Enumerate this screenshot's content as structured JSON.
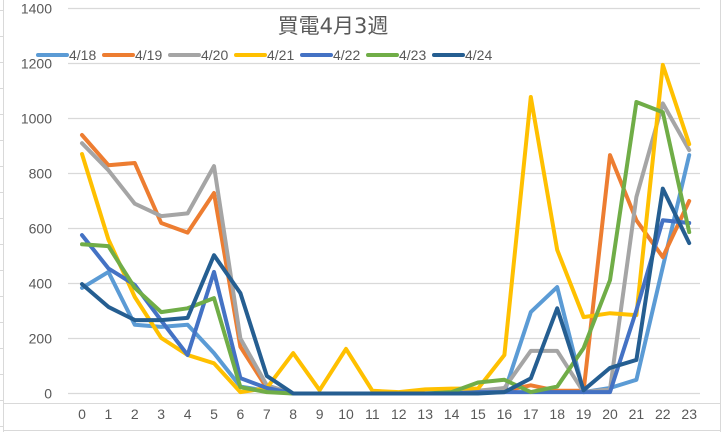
{
  "chart_data": {
    "type": "line",
    "title": "買電4月3週",
    "xlabel": "",
    "ylabel": "",
    "ylim": [
      0,
      1400
    ],
    "yticks": [
      0,
      200,
      400,
      600,
      800,
      1000,
      1200,
      1400
    ],
    "grid": true,
    "legend_position": "top",
    "categories": [
      "0",
      "1",
      "2",
      "3",
      "4",
      "5",
      "6",
      "7",
      "8",
      "9",
      "10",
      "11",
      "12",
      "13",
      "14",
      "15",
      "16",
      "17",
      "18",
      "19",
      "20",
      "21",
      "22",
      "23"
    ],
    "series": [
      {
        "name": "4/18",
        "color": "#5B9BD5",
        "values": [
          384,
          442,
          250,
          242,
          250,
          147,
          25,
          10,
          0,
          0,
          0,
          0,
          0,
          0,
          0,
          5,
          5,
          296,
          387,
          5,
          20,
          50,
          460,
          867
        ]
      },
      {
        "name": "4/19",
        "color": "#ED7D31",
        "values": [
          940,
          830,
          838,
          620,
          585,
          729,
          170,
          20,
          0,
          0,
          0,
          0,
          0,
          0,
          0,
          5,
          10,
          30,
          10,
          10,
          867,
          630,
          496,
          700
        ]
      },
      {
        "name": "4/20",
        "color": "#A5A5A5",
        "values": [
          910,
          812,
          690,
          645,
          655,
          827,
          200,
          30,
          0,
          0,
          0,
          0,
          0,
          0,
          0,
          10,
          20,
          155,
          155,
          5,
          15,
          715,
          1055,
          885
        ]
      },
      {
        "name": "4/21",
        "color": "#FFC000",
        "values": [
          871,
          560,
          351,
          202,
          140,
          110,
          5,
          20,
          147,
          12,
          162,
          10,
          5,
          15,
          18,
          18,
          140,
          1078,
          522,
          278,
          292,
          285,
          1195,
          907
        ]
      },
      {
        "name": "4/22",
        "color": "#4472C4",
        "values": [
          576,
          455,
          395,
          265,
          140,
          442,
          56,
          20,
          0,
          0,
          0,
          0,
          0,
          0,
          0,
          5,
          5,
          5,
          5,
          5,
          5,
          303,
          630,
          620
        ]
      },
      {
        "name": "4/23",
        "color": "#70AD47",
        "values": [
          543,
          536,
          384,
          296,
          310,
          347,
          23,
          5,
          0,
          0,
          0,
          0,
          0,
          0,
          5,
          40,
          50,
          5,
          25,
          165,
          412,
          1060,
          1023,
          587
        ]
      },
      {
        "name": "4/24",
        "color": "#255E91",
        "values": [
          398,
          315,
          267,
          267,
          275,
          503,
          365,
          64,
          0,
          0,
          0,
          0,
          0,
          0,
          0,
          0,
          5,
          55,
          310,
          12,
          93,
          122,
          745,
          547
        ]
      }
    ]
  }
}
